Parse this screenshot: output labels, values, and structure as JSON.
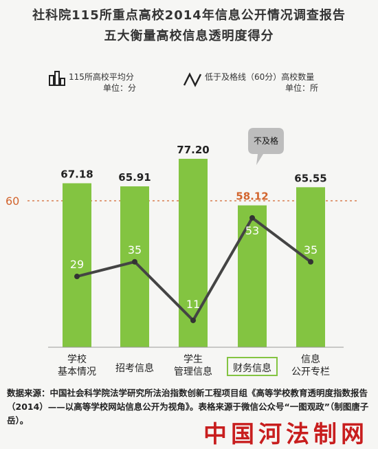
{
  "title_line1": "社科院115所重点高校2014年信息公开情况调查报告",
  "title_line2": "五大衡量高校信息透明度得分",
  "legend": {
    "bar_label": "115所高校平均分",
    "bar_unit": "单位：分",
    "line_label": "低于及格线（60分）高校数量",
    "line_unit": "单位：所",
    "bar_icon": "bar-chart-icon",
    "line_icon": "line-chart-icon"
  },
  "source_text": "数据来源：中国社会科学院法学研究所法治指数创新工程项目组《高等学校教育透明度指数报告（2014）——以高等学校网站信息公开为视角》。表格来源于微信公众号“一图观政”（制图唐子岳）。",
  "watermark": "中国河法制网",
  "colors": {
    "bar": "#83c441",
    "line": "#444444",
    "fail": "#d2652e",
    "highlight_box": "#83c441"
  },
  "chart_data": {
    "type": "bar",
    "categories": [
      "学校\n基本情况",
      "招考信息",
      "学生\n管理信息",
      "财务信息",
      "信息\n公开专栏"
    ],
    "highlighted_category": "财务信息",
    "series": [
      {
        "values": [
          67.18,
          65.91,
          77.2,
          58.12,
          65.55
        ]
      },
      {
        "type": "line",
        "values": [
          29,
          35,
          11,
          53,
          35
        ]
      }
    ],
    "bar_labels": [
      "67.18",
      "65.91",
      "77.20",
      "58.12",
      "65.55"
    ],
    "line_labels": [
      "29",
      "35",
      "11",
      "53",
      "35"
    ],
    "reference_line": {
      "value": 60,
      "label": "60"
    },
    "annotation": {
      "text": "不及格",
      "category": "财务信息"
    },
    "bar_ylim": [
      0,
      100
    ],
    "line_ylim": [
      0,
      100
    ]
  }
}
